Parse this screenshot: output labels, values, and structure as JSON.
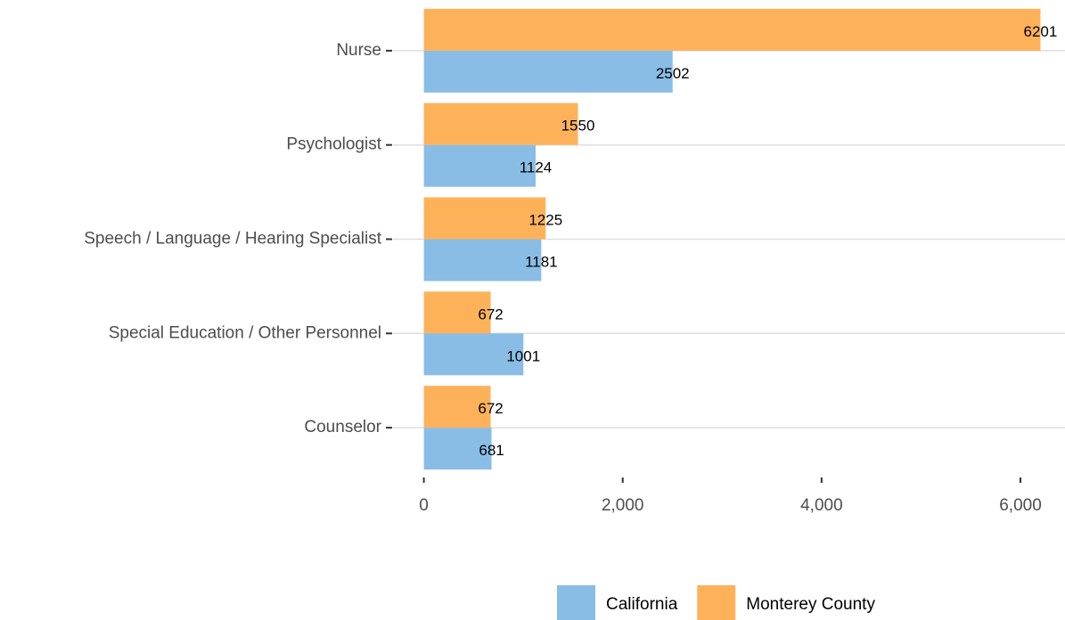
{
  "chart_data": {
    "type": "bar",
    "orientation": "horizontal",
    "categories": [
      "Nurse",
      "Psychologist",
      "Speech / Language / Hearing Specialist",
      "Special Education / Other Personnel",
      "Counselor"
    ],
    "series": [
      {
        "name": "California",
        "color": "#89bde6",
        "values": [
          2502,
          1124,
          1181,
          1001,
          681
        ]
      },
      {
        "name": "Monterey County",
        "color": "#fdb25a",
        "values": [
          6201,
          1550,
          1225,
          672,
          672
        ]
      }
    ],
    "xlim": [
      -310,
      6448
    ],
    "xticks": [
      0,
      {
        "value": 2000,
        "label": "2,000"
      },
      {
        "value": 4000,
        "label": "4,000"
      },
      {
        "value": 6000,
        "label": "6,000"
      }
    ],
    "grid": true,
    "legend": "bottom"
  }
}
